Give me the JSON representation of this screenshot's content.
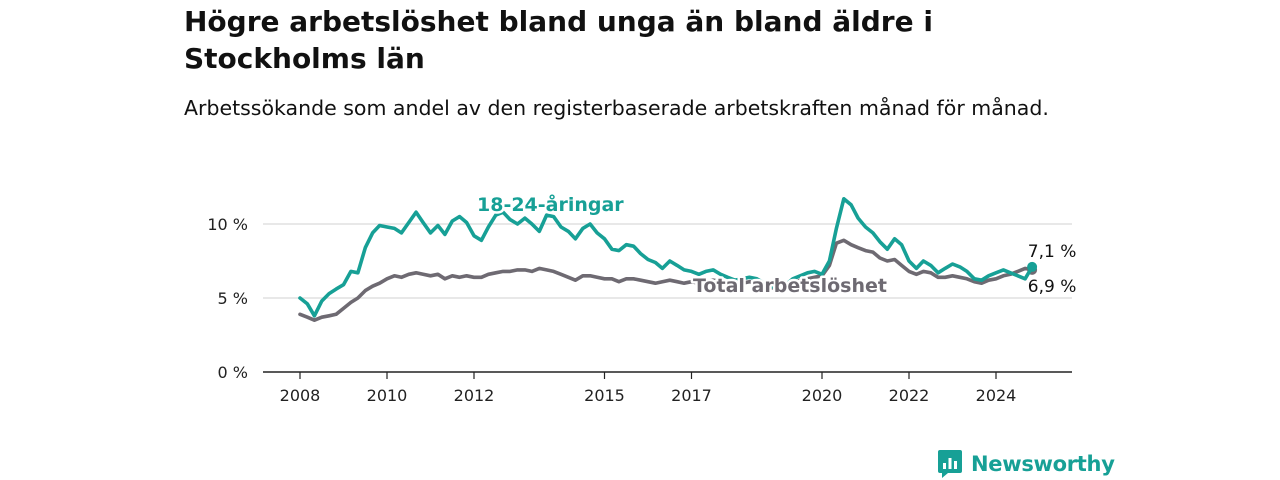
{
  "title": "Högre arbetslöshet bland unga än bland äldre i Stockholms län",
  "subtitle": "Arbetssökande som andel av den registerbaserade arbetskraften månad för månad.",
  "brand": {
    "name": "Newsworthy"
  },
  "colors": {
    "youth": "#17a096",
    "total": "#6e6a72",
    "grid": "#d9d9d9",
    "axis": "#222222"
  },
  "chart_data": {
    "type": "line",
    "title": "Högre arbetslöshet bland unga än bland äldre i Stockholms län",
    "subtitle": "Arbetssökande som andel av den registerbaserade arbetskraften månad för månad.",
    "xlabel": "",
    "ylabel": "",
    "ylim": [
      0,
      11
    ],
    "yticks": [
      0,
      5,
      10
    ],
    "ytick_labels": [
      "0 %",
      "5 %",
      "10 %"
    ],
    "xticks": [
      2008,
      2010,
      2012,
      2015,
      2017,
      2020,
      2022,
      2024
    ],
    "xtick_labels": [
      "2008",
      "2010",
      "2012",
      "2015",
      "2017",
      "2020",
      "2022",
      "2024"
    ],
    "grid": true,
    "series": [
      {
        "name": "18-24-åringar",
        "x": [
          2008.0,
          2008.17,
          2008.33,
          2008.5,
          2008.67,
          2008.83,
          2009.0,
          2009.17,
          2009.33,
          2009.5,
          2009.67,
          2009.83,
          2010.0,
          2010.17,
          2010.33,
          2010.5,
          2010.67,
          2010.83,
          2011.0,
          2011.17,
          2011.33,
          2011.5,
          2011.67,
          2011.83,
          2012.0,
          2012.17,
          2012.33,
          2012.5,
          2012.67,
          2012.83,
          2013.0,
          2013.17,
          2013.33,
          2013.5,
          2013.67,
          2013.83,
          2014.0,
          2014.17,
          2014.33,
          2014.5,
          2014.67,
          2014.83,
          2015.0,
          2015.17,
          2015.33,
          2015.5,
          2015.67,
          2015.83,
          2016.0,
          2016.17,
          2016.33,
          2016.5,
          2016.67,
          2016.83,
          2017.0,
          2017.17,
          2017.33,
          2017.5,
          2017.67,
          2017.83,
          2018.0,
          2018.17,
          2018.33,
          2018.5,
          2018.67,
          2018.83,
          2019.0,
          2019.17,
          2019.33,
          2019.5,
          2019.67,
          2019.83,
          2020.0,
          2020.17,
          2020.33,
          2020.5,
          2020.67,
          2020.83,
          2021.0,
          2021.17,
          2021.33,
          2021.5,
          2021.67,
          2021.83,
          2022.0,
          2022.17,
          2022.33,
          2022.5,
          2022.67,
          2022.83,
          2023.0,
          2023.17,
          2023.33,
          2023.5,
          2023.67,
          2023.83,
          2024.0,
          2024.17,
          2024.33,
          2024.5,
          2024.67,
          2024.83
        ],
        "y": [
          5.0,
          4.6,
          3.8,
          4.8,
          5.3,
          5.6,
          5.9,
          6.8,
          6.7,
          8.4,
          9.4,
          9.9,
          9.8,
          9.7,
          9.4,
          10.1,
          10.8,
          10.1,
          9.4,
          9.9,
          9.3,
          10.2,
          10.5,
          10.1,
          9.2,
          8.9,
          9.8,
          10.6,
          10.8,
          10.3,
          10.0,
          10.4,
          10.0,
          9.5,
          10.6,
          10.5,
          9.8,
          9.5,
          9.0,
          9.7,
          10.0,
          9.4,
          9.0,
          8.3,
          8.2,
          8.6,
          8.5,
          8.0,
          7.6,
          7.4,
          7.0,
          7.5,
          7.2,
          6.9,
          6.8,
          6.6,
          6.8,
          6.9,
          6.6,
          6.4,
          6.2,
          6.3,
          6.4,
          6.3,
          6.0,
          5.8,
          5.6,
          5.9,
          6.3,
          6.5,
          6.7,
          6.8,
          6.6,
          7.5,
          9.7,
          11.7,
          11.3,
          10.4,
          9.8,
          9.4,
          8.8,
          8.3,
          9.0,
          8.6,
          7.5,
          7.0,
          7.5,
          7.2,
          6.7,
          7.0,
          7.3,
          7.1,
          6.8,
          6.3,
          6.2,
          6.5,
          6.7,
          6.9,
          6.7,
          6.5,
          6.3,
          7.1
        ]
      },
      {
        "name": "Total arbetslöshet",
        "x": [
          2008.0,
          2008.17,
          2008.33,
          2008.5,
          2008.67,
          2008.83,
          2009.0,
          2009.17,
          2009.33,
          2009.5,
          2009.67,
          2009.83,
          2010.0,
          2010.17,
          2010.33,
          2010.5,
          2010.67,
          2010.83,
          2011.0,
          2011.17,
          2011.33,
          2011.5,
          2011.67,
          2011.83,
          2012.0,
          2012.17,
          2012.33,
          2012.5,
          2012.67,
          2012.83,
          2013.0,
          2013.17,
          2013.33,
          2013.5,
          2013.67,
          2013.83,
          2014.0,
          2014.17,
          2014.33,
          2014.5,
          2014.67,
          2014.83,
          2015.0,
          2015.17,
          2015.33,
          2015.5,
          2015.67,
          2015.83,
          2016.0,
          2016.17,
          2016.33,
          2016.5,
          2016.67,
          2016.83,
          2017.0,
          2017.17,
          2017.33,
          2017.5,
          2017.67,
          2017.83,
          2018.0,
          2018.17,
          2018.33,
          2018.5,
          2018.67,
          2018.83,
          2019.0,
          2019.17,
          2019.33,
          2019.5,
          2019.67,
          2019.83,
          2020.0,
          2020.17,
          2020.33,
          2020.5,
          2020.67,
          2020.83,
          2021.0,
          2021.17,
          2021.33,
          2021.5,
          2021.67,
          2021.83,
          2022.0,
          2022.17,
          2022.33,
          2022.5,
          2022.67,
          2022.83,
          2023.0,
          2023.17,
          2023.33,
          2023.5,
          2023.67,
          2023.83,
          2024.0,
          2024.17,
          2024.33,
          2024.5,
          2024.67,
          2024.83
        ],
        "y": [
          3.9,
          3.7,
          3.5,
          3.7,
          3.8,
          3.9,
          4.3,
          4.7,
          5.0,
          5.5,
          5.8,
          6.0,
          6.3,
          6.5,
          6.4,
          6.6,
          6.7,
          6.6,
          6.5,
          6.6,
          6.3,
          6.5,
          6.4,
          6.5,
          6.4,
          6.4,
          6.6,
          6.7,
          6.8,
          6.8,
          6.9,
          6.9,
          6.8,
          7.0,
          6.9,
          6.8,
          6.6,
          6.4,
          6.2,
          6.5,
          6.5,
          6.4,
          6.3,
          6.3,
          6.1,
          6.3,
          6.3,
          6.2,
          6.1,
          6.0,
          6.1,
          6.2,
          6.1,
          6.0,
          6.1,
          6.0,
          6.1,
          6.2,
          6.1,
          6.0,
          5.9,
          6.0,
          6.1,
          6.0,
          5.8,
          5.7,
          5.6,
          5.8,
          6.0,
          6.2,
          6.3,
          6.4,
          6.5,
          7.2,
          8.7,
          8.9,
          8.6,
          8.4,
          8.2,
          8.1,
          7.7,
          7.5,
          7.6,
          7.2,
          6.8,
          6.6,
          6.8,
          6.7,
          6.4,
          6.4,
          6.5,
          6.4,
          6.3,
          6.1,
          6.0,
          6.2,
          6.3,
          6.5,
          6.6,
          6.8,
          7.0,
          6.9
        ]
      }
    ],
    "annotations": [
      {
        "text": "18-24-åringar",
        "series": "18-24-åringar"
      },
      {
        "text": "Total arbetslöshet",
        "series": "Total arbetslöshet"
      },
      {
        "text": "7,1 %",
        "series": "18-24-åringar",
        "value": 7.1
      },
      {
        "text": "6,9 %",
        "series": "Total arbetslöshet",
        "value": 6.9
      }
    ]
  }
}
